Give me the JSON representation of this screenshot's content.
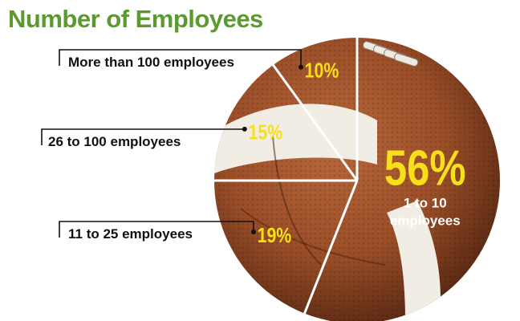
{
  "title": "Number of Employees",
  "colors": {
    "title": "#5a9a2e",
    "percent": "#f7e01a",
    "leather": "#a0532c",
    "leather_dark": "#5e2c14",
    "stripe": "#f1ede4",
    "divider": "#ffffff",
    "leader": "#111111",
    "inner_label": "#ffffff"
  },
  "chart_data": {
    "type": "pie",
    "title": "Number of Employees",
    "slices": [
      {
        "label": "1 to 10 employees",
        "value": 56,
        "display": "56%",
        "label_line1": "1 to 10",
        "label_line2": "employees"
      },
      {
        "label": "11 to 25 employees",
        "value": 19,
        "display": "19%"
      },
      {
        "label": "26 to 100 employees",
        "value": 15,
        "display": "15%"
      },
      {
        "label": "More than 100 employees",
        "value": 10,
        "display": "10%"
      }
    ],
    "unit": "%",
    "background_image": "football"
  }
}
